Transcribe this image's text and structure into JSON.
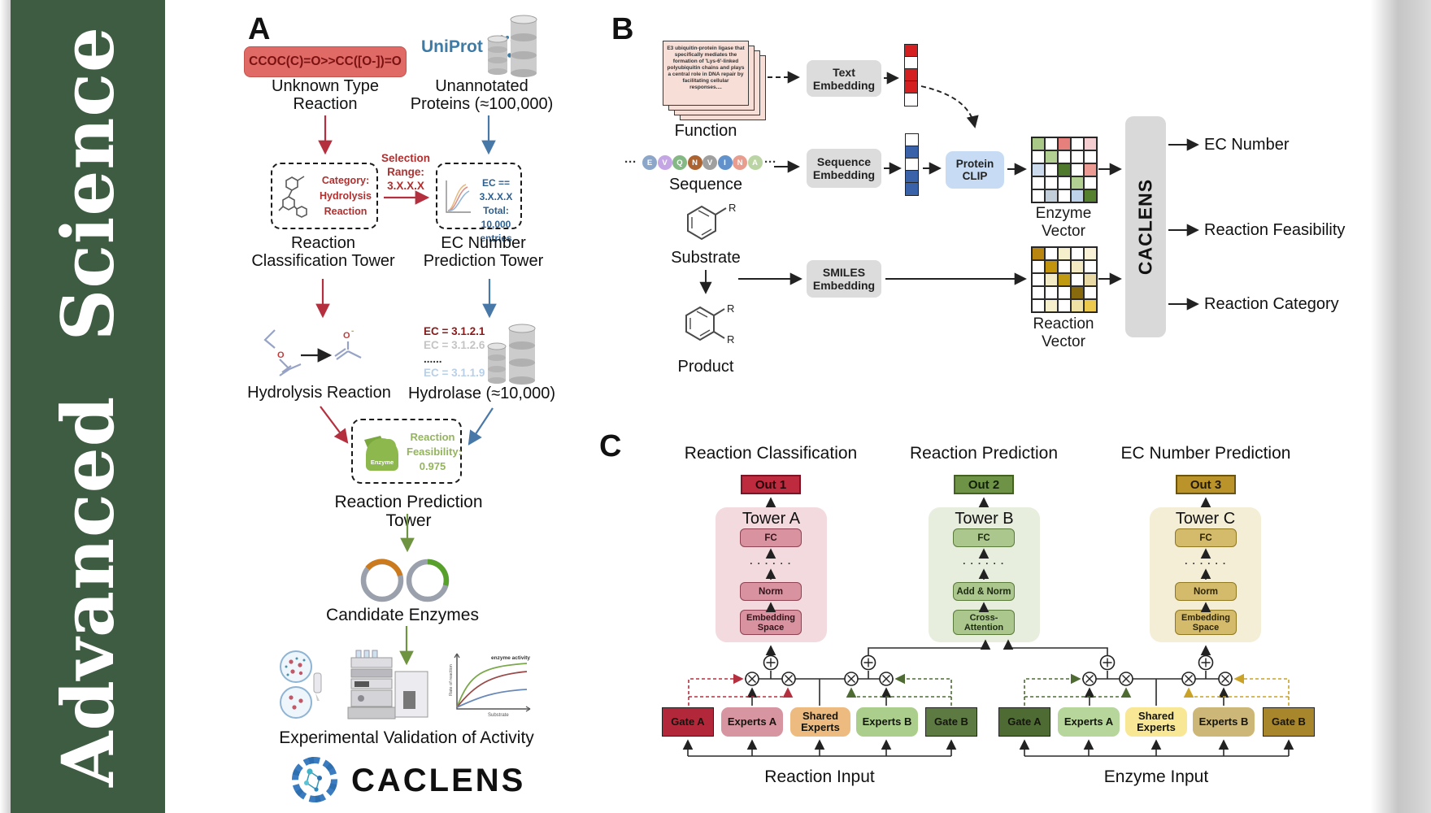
{
  "band": {
    "title": "Advanced Science",
    "color": "#3e5c42"
  },
  "panelA": {
    "label": "A",
    "smiles_box": {
      "text": "CCOC(C)=O>>CC([O-])=O",
      "bg": "#e06a66",
      "fg": "#7a1212"
    },
    "unknown_label": "Unknown Type\nReaction",
    "uniprot": "UniProt",
    "unannotated_label": "Unannotated\nProteins (≈100,000)",
    "category_text": "Category:\nHydrolysis\nReaction",
    "selection_label": "Selection\nRange:\n3.X.X.X",
    "ec_box_text": "EC == 3.X.X.X\nTotal: 10,000\nentries",
    "classification_tower_label": "Reaction\nClassification Tower",
    "ec_tower_label": "EC Number\nPrediction Tower",
    "hydrolysis_label": "Hydrolysis Reaction",
    "ec_list": [
      {
        "t": "EC = 3.1.2.1",
        "c": "#8a1a1a",
        "b": true
      },
      {
        "t": "EC = 3.1.2.6",
        "c": "#c4c4c4",
        "b": true
      },
      {
        "t": "......",
        "c": "#333333",
        "b": true
      },
      {
        "t": "EC = 3.1.1.9",
        "c": "#b9cfe6",
        "b": true
      }
    ],
    "hydrolase_label": "Hydrolase (≈10,000)",
    "enzyme_icon_label": "Enzyme",
    "feasibility_text": "Reaction\nFeasibility:\n0.975",
    "prediction_tower_label": "Reaction Prediction Tower",
    "candidate_label": "Candidate Enzymes",
    "activity_plot": {
      "ylabel": "Rate of reaction",
      "xlabel": "Substrate",
      "annotation": "enzyme activity"
    },
    "validation_label": "Experimental Validation of Activity",
    "logo_text": "CACLENS",
    "arrow_colors": {
      "red": "#b5303f",
      "blue": "#4878a8",
      "green": "#6f9441"
    }
  },
  "panelB": {
    "label": "B",
    "function_card_text": "E3 ubiquitin-protein ligase that specifically mediates the formation of 'Lys-6'-linked polyubiquitin chains and plays a central role in DNA repair by facilitating cellular responses....",
    "function_label": "Function",
    "ellipsis": "···",
    "residues": [
      {
        "l": "E",
        "c": "#8ca6c9"
      },
      {
        "l": "V",
        "c": "#c5a6e4"
      },
      {
        "l": "Q",
        "c": "#84b884"
      },
      {
        "l": "N",
        "c": "#ad6330"
      },
      {
        "l": "V",
        "c": "#9f9f9f"
      },
      {
        "l": "I",
        "c": "#6292cc"
      },
      {
        "l": "N",
        "c": "#e89d8e"
      },
      {
        "l": "A",
        "c": "#bad4a3"
      }
    ],
    "sequence_label": "Sequence",
    "substrate_label": "Substrate",
    "product_label": "Product",
    "r_label": "R",
    "text_embedding_label": "Text\nEmbedding",
    "sequence_embedding_label": "Sequence\nEmbedding",
    "smiles_embedding_label": "SMILES\nEmbedding",
    "protein_clip_label": "Protein\nCLIP",
    "vectors": {
      "text": [
        "#d42020",
        "#ffffff",
        "#d42020",
        "#d42020",
        "#ffffff"
      ],
      "sequence": [
        "#ffffff",
        "#3a62a8",
        "#ffffff",
        "#3a62a8",
        "#3a62a8"
      ]
    },
    "matrices": {
      "enzyme": [
        [
          "#a9c887",
          "#ffffff",
          "#e5807d",
          "#ffffff",
          "#f3cdd0"
        ],
        [
          "#ffffff",
          "#b3d093",
          "#ffffff",
          "#ffffff",
          "#ffffff"
        ],
        [
          "#ccdaee",
          "#ffffff",
          "#4f7a2e",
          "#ffffff",
          "#eb9b94"
        ],
        [
          "#ffffff",
          "#ffffff",
          "#ffffff",
          "#b3d093",
          "#ffffff"
        ],
        [
          "#ffffff",
          "#c3cedb",
          "#ffffff",
          "#bed3ea",
          "#55802e"
        ]
      ],
      "reaction": [
        [
          "#b8860f",
          "#ffffff",
          "#f6efcb",
          "#ffffff",
          "#f9f2d6"
        ],
        [
          "#ffffff",
          "#c3940d",
          "#ffffff",
          "#f3e9c2",
          "#ffffff"
        ],
        [
          "#ffffff",
          "#f3ecc6",
          "#c09b12",
          "#ffffff",
          "#e9d9a5"
        ],
        [
          "#ffffff",
          "#ffffff",
          "#ffffff",
          "#87690e",
          "#ffffff"
        ],
        [
          "#ffffff",
          "#f6efcb",
          "#ffffff",
          "#f0e1a5",
          "#ecc84d"
        ]
      ]
    },
    "enzyme_vector_label": "Enzyme Vector",
    "reaction_vector_label": "Reaction Vector",
    "caclens_label": "CACLENS",
    "outputs": [
      "EC Number",
      "Reaction Feasibility",
      "Reaction Category"
    ]
  },
  "panelC": {
    "label": "C",
    "headers": {
      "a": "Reaction Classification",
      "b": "Reaction Prediction",
      "c": "EC Number Prediction"
    },
    "outs": {
      "a": "Out 1",
      "b": "Out 2",
      "c": "Out 3"
    },
    "towers": {
      "a": {
        "title": "Tower A",
        "fc": "FC",
        "dots": "· · · · · ·",
        "mid": "Norm",
        "bottom": "Embedding\nSpace"
      },
      "b": {
        "title": "Tower B",
        "fc": "FC",
        "dots": "· · · · · ·",
        "mid": "Add & Norm",
        "bottom": "Cross-\nAttention"
      },
      "c": {
        "title": "Tower C",
        "fc": "FC",
        "dots": "· · · · · ·",
        "mid": "Norm",
        "bottom": "Embedding\nSpace"
      }
    },
    "moe_left": {
      "gate_a": "Gate A",
      "experts_a": "Experts A",
      "shared": "Shared\nExperts",
      "experts_b": "Experts B",
      "gate_b": "Gate B",
      "input": "Reaction Input"
    },
    "moe_right": {
      "gate_a": "Gate A",
      "experts_a": "Experts A",
      "shared": "Shared\nExperts",
      "experts_b": "Experts B",
      "gate_b": "Gate B",
      "input": "Enzyme Input"
    },
    "colors": {
      "out1": "#bf2b3e",
      "out2": "#6f9346",
      "out3": "#bb932b",
      "towerA_bg": "#f3dade",
      "towerB_bg": "#e8eede",
      "towerC_bg": "#f4eed6",
      "gateA_left": "#b3273a",
      "expertsA_left": "#d795a1",
      "shared_left": "#edbb80",
      "expertsB_left": "#abce8d",
      "gateB_left": "#5d7a42",
      "gateA_right": "#4e6b33",
      "expertsA_right": "#b6d69b",
      "shared_right": "#f8e795",
      "expertsB_right": "#ccb778",
      "gateB_right": "#a8862c"
    }
  }
}
